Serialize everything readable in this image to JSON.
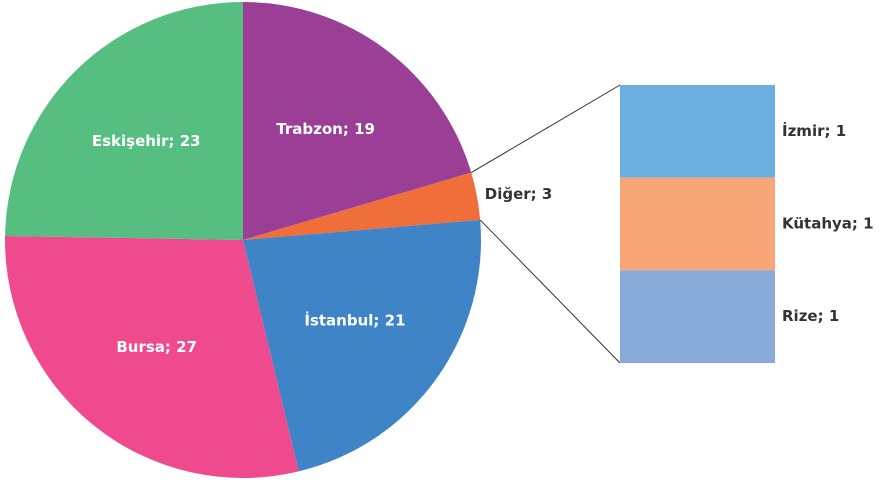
{
  "chart_data": {
    "type": "pie_of_bar",
    "categories": [
      "Trabzon",
      "Diğer",
      "İstanbul",
      "Bursa",
      "Eskişehir"
    ],
    "values": [
      19,
      3,
      21,
      27,
      23
    ],
    "value_labels": [
      "Trabzon; 19",
      "Diğer; 3",
      "İstanbul; 21",
      "Bursa; 27",
      "Eskişehir; 23"
    ],
    "colors": [
      "#9b3e96",
      "#f06e3a",
      "#3e84c6",
      "#ee4a8d",
      "#55be80"
    ],
    "breakout": {
      "categories": [
        "İzmir",
        "Kütahya",
        "Rize"
      ],
      "values": [
        1,
        1,
        1
      ],
      "value_labels": [
        "İzmir; 1",
        "Kütahya; 1",
        "Rize; 1"
      ],
      "colors": [
        "#6aafe0",
        "#f8a678",
        "#87aad8"
      ]
    }
  }
}
